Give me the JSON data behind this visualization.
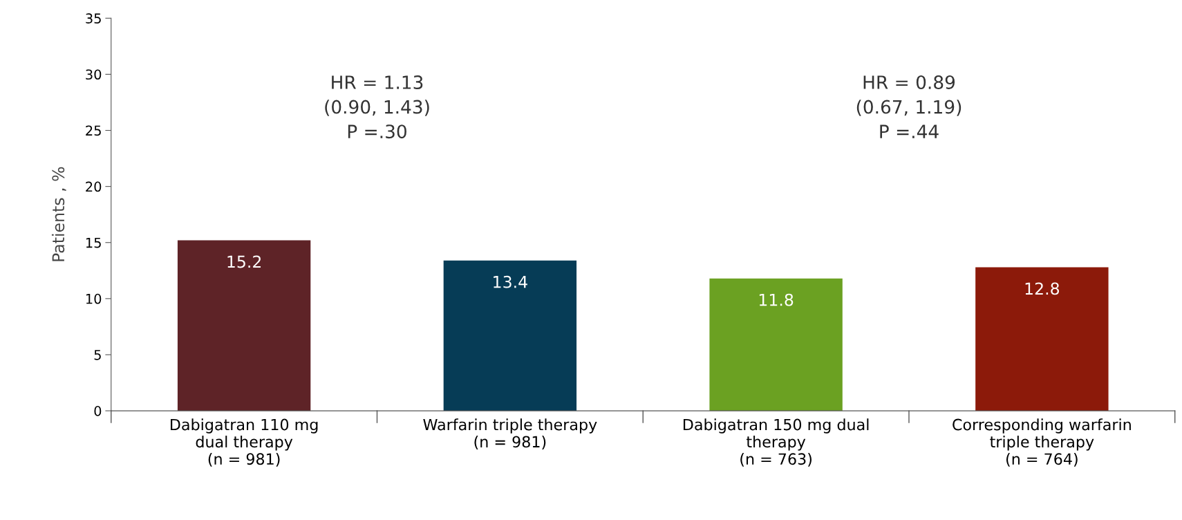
{
  "chart_data": {
    "type": "bar",
    "ylabel": "Patients , %",
    "categories": [
      "Dabigatran 110 mg\ndual therapy\n(n = 981)",
      "Warfarin triple therapy\n(n = 981)",
      "Dabigatran 150 mg dual\ntherapy\n(n = 763)",
      "Corresponding warfarin\ntriple therapy\n(n = 764)"
    ],
    "values": [
      15.2,
      13.4,
      11.8,
      12.8
    ],
    "colors": [
      "#5e2327",
      "#063c56",
      "#6ba122",
      "#8c1a0a"
    ],
    "ylim": [
      0,
      35
    ],
    "yticks": [
      0,
      5,
      10,
      15,
      20,
      25,
      30,
      35
    ],
    "data_labels": true,
    "grid": false,
    "legend": false,
    "annotations": [
      "HR = 1.13\n(0.90, 1.43)\nP =.30",
      "HR = 0.89\n(0.67, 1.19)\nP =.44"
    ]
  }
}
